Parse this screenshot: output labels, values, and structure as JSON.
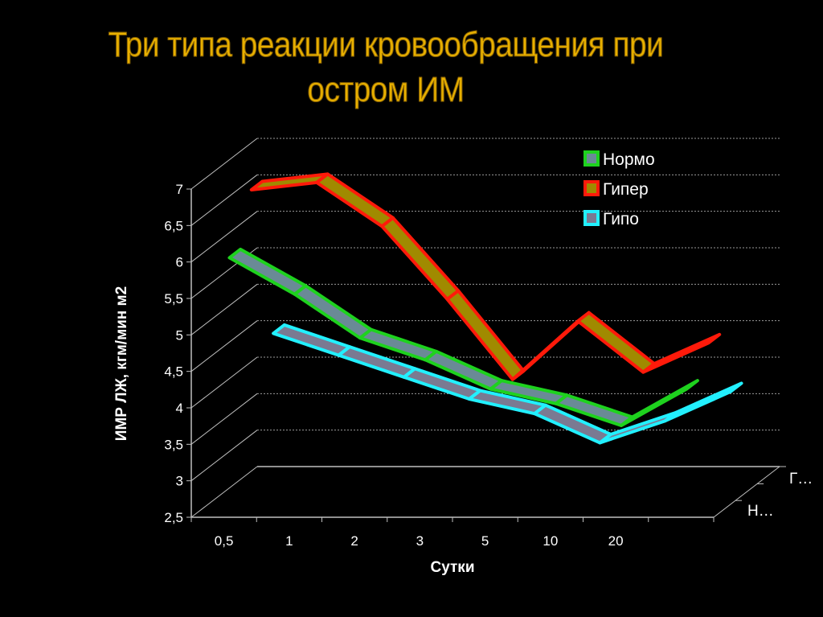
{
  "title": {
    "line1": "Три типа реакции кровообращения при",
    "line2": "остром ИМ"
  },
  "colors": {
    "background": "#000000",
    "title": "#e8b000",
    "axis": "#bfbfbf",
    "grid": "#9a9a9a"
  },
  "chart_data": {
    "type": "line",
    "style": "3d-ribbon",
    "title": "Три типа реакции кровообращения при остром ИМ",
    "xlabel": "Сутки",
    "ylabel": "ИМР ЛЖ, кгм/мин м2",
    "categories": [
      "0,5",
      "1",
      "2",
      "3",
      "5",
      "10",
      "20",
      ""
    ],
    "y_ticks": [
      "2,5",
      "3",
      "3,5",
      "4",
      "4,5",
      "5",
      "5,5",
      "6",
      "6,5",
      "7"
    ],
    "ylim": [
      2.5,
      7
    ],
    "grid": true,
    "legend_position": "top-right",
    "depth_labels": [
      "Г…",
      "Н…"
    ],
    "series": [
      {
        "name": "Нормо",
        "edge": "#1ed21e",
        "fill": "#6a8a96",
        "values": [
          6.0,
          5.5,
          4.9,
          4.6,
          4.2,
          4.0,
          3.7,
          4.2
        ]
      },
      {
        "name": "Гипер",
        "edge": "#ff1a0a",
        "fill": "#a08a00",
        "values": [
          6.7,
          6.8,
          6.2,
          5.2,
          4.1,
          4.9,
          4.2,
          4.6
        ]
      },
      {
        "name": "Гипо",
        "edge": "#22f0ff",
        "fill": "#7a7a92",
        "values": [
          4.5,
          4.2,
          3.9,
          3.6,
          3.4,
          3.0,
          3.3,
          3.7
        ]
      }
    ]
  }
}
